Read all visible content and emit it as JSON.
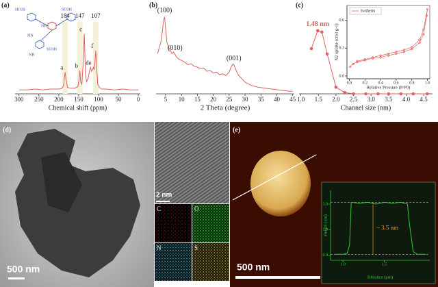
{
  "panel_labels": [
    "(a)",
    "(b)",
    "(c)",
    "(d)",
    "(e)"
  ],
  "structure_labels": [
    "HO3S",
    "NH",
    "SO3H",
    "HN",
    "SO3H",
    "NH"
  ],
  "images": {
    "tem_scale": "500 nm",
    "hrtem_scale": "2 nm",
    "eds_labels": [
      "C",
      "O",
      "N",
      "S"
    ],
    "afm_scale": "500 nm"
  },
  "chart_data": [
    {
      "type": "line",
      "xlabel": "Chemical shift (ppm)",
      "color": "#e06060",
      "xlim": [
        310,
        -5
      ],
      "ylim": [
        0,
        100
      ],
      "xticks": [
        300,
        250,
        200,
        150,
        100,
        50,
        0
      ],
      "x": [
        300,
        280,
        260,
        240,
        220,
        200,
        192,
        188,
        186,
        184,
        182,
        178,
        170,
        160,
        152,
        149,
        147,
        145,
        142,
        139,
        137,
        136,
        135,
        133,
        130,
        126,
        122,
        120,
        118,
        115,
        113,
        111,
        109,
        107,
        105,
        102,
        98,
        92,
        80,
        60,
        40,
        20,
        0
      ],
      "values": [
        5,
        5,
        6,
        5,
        6,
        6,
        7,
        10,
        20,
        27,
        18,
        8,
        7,
        7,
        9,
        18,
        29,
        15,
        12,
        35,
        62,
        75,
        60,
        25,
        15,
        20,
        30,
        33,
        28,
        30,
        33,
        30,
        40,
        54,
        35,
        12,
        8,
        6,
        6,
        5,
        6,
        5,
        5
      ],
      "top_labels": [
        {
          "value": 184,
          "label": "184"
        },
        {
          "value": 147,
          "label": "147"
        },
        {
          "value": 107,
          "label": "107"
        }
      ],
      "peak_labels": [
        {
          "value": 184,
          "label": "a"
        },
        {
          "value": 147,
          "label": "b"
        },
        {
          "value": 136,
          "label": "c"
        },
        {
          "value": 120,
          "label": "d"
        },
        {
          "value": 113,
          "label": "e"
        },
        {
          "value": 107,
          "label": "f"
        }
      ]
    },
    {
      "type": "line",
      "xlabel": "2 Theta (degree)",
      "color": "#e06060",
      "xlim": [
        2,
        45.5
      ],
      "ylim": [
        0,
        100
      ],
      "xticks": [
        5,
        10,
        15,
        20,
        25,
        30,
        35,
        40,
        45
      ],
      "x": [
        2.5,
        3,
        3.5,
        4,
        4.4,
        4.7,
        5,
        5.4,
        6,
        6.5,
        7,
        7.5,
        8,
        8.5,
        9,
        10,
        11,
        12,
        13,
        14,
        15,
        16,
        17,
        18,
        19,
        20,
        21,
        22,
        23,
        24,
        25,
        25.6,
        26.2,
        26.6,
        27.2,
        28,
        29,
        30,
        31,
        32,
        34,
        36,
        38,
        40,
        42,
        44,
        45
      ],
      "values": [
        48,
        55,
        62,
        75,
        88,
        92,
        80,
        62,
        55,
        52,
        48,
        50,
        47,
        44,
        42,
        40,
        38,
        35,
        36,
        33,
        32,
        30,
        31,
        27,
        28,
        25,
        26,
        23,
        24,
        22,
        26,
        32,
        36,
        34,
        28,
        22,
        18,
        14,
        12,
        10,
        8,
        7,
        6,
        5,
        4,
        3,
        3
      ],
      "peak_labels": [
        {
          "value": 4.7,
          "label": "(100)"
        },
        {
          "value": 8,
          "label": "(010)"
        },
        {
          "value": 26.5,
          "label": "(001)"
        }
      ]
    },
    {
      "type": "line",
      "xlabel": "Channel size (nm)",
      "color": "#e06060",
      "markers": true,
      "xlim": [
        0.95,
        4.75
      ],
      "ylim": [
        0,
        100
      ],
      "xticks": [
        {
          "value": 1,
          "label": "1.0"
        },
        1.5,
        {
          "value": 2,
          "label": "2.0"
        },
        2.5,
        {
          "value": 3,
          "label": "3.0"
        },
        3.5,
        {
          "value": 4,
          "label": "4.0"
        },
        4.5
      ],
      "x": [
        1.3,
        1.48,
        1.6,
        1.75,
        2.0,
        2.25,
        2.5,
        2.85,
        3.2,
        3.5,
        3.85,
        4.2,
        4.6
      ],
      "values": [
        68,
        95,
        93,
        60,
        10,
        2,
        0,
        0,
        0,
        0,
        0,
        0,
        0
      ],
      "annotation": "1.48 nm"
    },
    {
      "type": "line",
      "xlabel": "Relative Pressure (P/P0)",
      "ylabel": "N2 uptake (cm3 g-1)",
      "legend": "Isotherm",
      "color": "#e06060",
      "markers": true,
      "xlim": [
        -0.03,
        1.03
      ],
      "ylim": [
        -0.03,
        0.76
      ],
      "xticks": [
        {
          "value": 0,
          "label": "0.0"
        },
        0.2,
        0.4,
        0.6,
        0.8,
        {
          "value": 1,
          "label": "1.0"
        }
      ],
      "yticks": [
        {
          "value": 0,
          "label": "0.0"
        },
        0.3,
        0.6
      ],
      "x": [
        0.01,
        0.05,
        0.1,
        0.2,
        0.3,
        0.4,
        0.5,
        0.6,
        0.7,
        0.8,
        0.9,
        0.95,
        0.99,
        1.0,
        0.95,
        0.9,
        0.8,
        0.7,
        0.6,
        0.5,
        0.4,
        0.3,
        0.2,
        0.1
      ],
      "values": [
        0.1,
        0.13,
        0.15,
        0.17,
        0.19,
        0.2,
        0.22,
        0.24,
        0.26,
        0.29,
        0.36,
        0.45,
        0.65,
        0.72,
        0.5,
        0.39,
        0.31,
        0.28,
        0.26,
        0.24,
        0.22,
        0.2,
        0.18,
        0.16
      ]
    },
    {
      "type": "line",
      "xlabel": "Distance (μm)",
      "ylabel": "Height (nm)",
      "color": "#33cc33",
      "annotation": "~ 3.5 nm",
      "xlim": [
        0.85,
        2.05
      ],
      "ylim": [
        -0.3,
        3.8
      ],
      "xticks": [
        {
          "value": 1,
          "label": "1.0"
        },
        1.5
      ],
      "yticks": [
        {
          "value": 0,
          "label": "0.0"
        },
        1.5,
        {
          "value": 3,
          "label": "3.0"
        }
      ],
      "x": [
        0.9,
        1.0,
        1.05,
        1.08,
        1.1,
        1.2,
        1.3,
        1.4,
        1.5,
        1.6,
        1.7,
        1.78,
        1.8,
        1.85,
        1.9,
        2.0
      ],
      "values": [
        0.05,
        0.05,
        0.1,
        0.6,
        3.1,
        3.05,
        3.1,
        3.0,
        3.1,
        3.05,
        3.1,
        3.0,
        2.0,
        0.2,
        0.05,
        0.05
      ]
    }
  ]
}
